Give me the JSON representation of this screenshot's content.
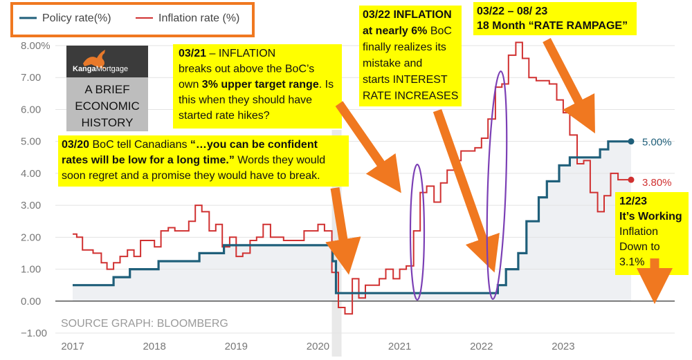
{
  "legend": {
    "items": [
      {
        "label": "Policy rate(%)",
        "color": "#1f5f7a"
      },
      {
        "label": "Inflation rate (%)",
        "color": "#d03030"
      }
    ],
    "border_color": "#f07820"
  },
  "logo": {
    "brand_kanga": "Kanga",
    "brand_mortgage": "Mortgage",
    "icon": "kangaroo-icon"
  },
  "history_box": {
    "lines": [
      "A BRIEF",
      "ECONOMIC",
      "HISTORY"
    ]
  },
  "source": "SOURCE GRAPH: BLOOMBERG",
  "annotations": {
    "mar20": {
      "lines": [
        [
          {
            "t": "03/20",
            "b": true
          },
          {
            "t": " BoC tell Canadians ",
            "b": false
          },
          {
            "t": "“…you can be confident",
            "b": true
          }
        ],
        [
          {
            "t": "rates will be low for a long time.”",
            "b": true
          },
          {
            "t": "  Words they would",
            "b": false
          }
        ],
        [
          {
            "t": "soon regret and a promise they would have to break.",
            "b": false
          }
        ]
      ]
    },
    "mar21": {
      "lines": [
        [
          {
            "t": "03/21",
            "b": true
          },
          {
            "t": " – INFLATION",
            "b": false
          }
        ],
        [
          {
            "t": "breaks out above the BoC’s",
            "b": false
          }
        ],
        [
          {
            "t": "own ",
            "b": false
          },
          {
            "t": "3% upper target range",
            "b": true
          },
          {
            "t": ". Is",
            "b": false
          }
        ],
        [
          {
            "t": "this when they should have",
            "b": false
          }
        ],
        [
          {
            "t": "started rate hikes?",
            "b": false
          }
        ]
      ]
    },
    "mar22": {
      "lines": [
        [
          {
            "t": "03/22 INFLATION",
            "b": true
          }
        ],
        [
          {
            "t": "at nearly 6%",
            "b": true
          },
          {
            "t": " BoC",
            "b": false
          }
        ],
        [
          {
            "t": "finally realizes its",
            "b": false
          }
        ],
        [
          {
            "t": "mistake and",
            "b": false
          }
        ],
        [
          {
            "t": "starts INTEREST",
            "b": false
          }
        ],
        [
          {
            "t": "RATE INCREASES",
            "b": false
          }
        ]
      ]
    },
    "rampage": {
      "lines": [
        [
          {
            "t": "03/22 – 08/ 23",
            "b": true
          }
        ],
        [
          {
            "t": "18 Month “RATE RAMPAGE”",
            "b": true
          }
        ]
      ]
    },
    "dec23": {
      "lines": [
        [
          {
            "t": "12/23",
            "b": true
          }
        ],
        [
          {
            "t": "It’s Working",
            "b": true
          }
        ],
        [
          {
            "t": "Inflation",
            "b": false
          }
        ],
        [
          {
            "t": "Down to",
            "b": false
          }
        ],
        [
          {
            "t": "3.1%",
            "b": false
          }
        ]
      ]
    }
  },
  "end_labels": {
    "policy": "5.00%",
    "inflation": "3.80%"
  },
  "colors": {
    "policy": "#1f5f7a",
    "inflation": "#d03030",
    "note_bg": "#ffff00",
    "arrow": "#f07820",
    "ellipse": "#7b3fb5",
    "area": "#eef0f3"
  },
  "chart_data": {
    "type": "line",
    "ylim": [
      -1,
      8
    ],
    "xlim": [
      2017,
      2023.95
    ],
    "y_ticks": [
      8,
      7,
      6,
      5,
      4,
      3,
      2,
      1,
      0,
      -1
    ],
    "y_tick_labels": [
      "8.00%",
      "7.00",
      "6.00",
      "5.00",
      "4.00",
      "3.00",
      "2.00",
      "1.00",
      "0.00",
      "−1.00"
    ],
    "x_ticks": [
      2017,
      2018,
      2019,
      2020,
      2021,
      2022,
      2023
    ],
    "x_tick_labels": [
      "2017",
      "2018",
      "2019",
      "2020",
      "2021",
      "2022",
      "2023"
    ],
    "series": [
      {
        "name": "Policy rate(%)",
        "step": true,
        "points": [
          [
            2017.0,
            0.5
          ],
          [
            2017.5,
            0.75
          ],
          [
            2017.7,
            1.0
          ],
          [
            2018.05,
            1.25
          ],
          [
            2018.55,
            1.5
          ],
          [
            2018.85,
            1.75
          ],
          [
            2020.18,
            1.25
          ],
          [
            2020.22,
            0.25
          ],
          [
            2022.2,
            0.5
          ],
          [
            2022.3,
            1.0
          ],
          [
            2022.45,
            1.5
          ],
          [
            2022.55,
            2.5
          ],
          [
            2022.7,
            3.25
          ],
          [
            2022.8,
            3.75
          ],
          [
            2022.95,
            4.25
          ],
          [
            2023.08,
            4.5
          ],
          [
            2023.45,
            4.75
          ],
          [
            2023.55,
            5.0
          ],
          [
            2023.83,
            5.0
          ]
        ]
      },
      {
        "name": "Inflation rate (%)",
        "step": true,
        "points": [
          [
            2017.0,
            2.1
          ],
          [
            2017.05,
            2.0
          ],
          [
            2017.12,
            1.6
          ],
          [
            2017.25,
            1.5
          ],
          [
            2017.35,
            1.2
          ],
          [
            2017.42,
            1.0
          ],
          [
            2017.5,
            1.2
          ],
          [
            2017.58,
            1.4
          ],
          [
            2017.67,
            1.6
          ],
          [
            2017.75,
            1.4
          ],
          [
            2017.83,
            1.9
          ],
          [
            2017.92,
            1.9
          ],
          [
            2018.0,
            1.7
          ],
          [
            2018.08,
            2.2
          ],
          [
            2018.17,
            2.3
          ],
          [
            2018.25,
            2.2
          ],
          [
            2018.33,
            2.2
          ],
          [
            2018.42,
            2.5
          ],
          [
            2018.5,
            3.0
          ],
          [
            2018.58,
            2.8
          ],
          [
            2018.67,
            2.2
          ],
          [
            2018.75,
            2.4
          ],
          [
            2018.83,
            1.7
          ],
          [
            2018.92,
            2.0
          ],
          [
            2019.0,
            1.4
          ],
          [
            2019.08,
            1.5
          ],
          [
            2019.17,
            1.9
          ],
          [
            2019.25,
            2.0
          ],
          [
            2019.33,
            2.4
          ],
          [
            2019.42,
            2.0
          ],
          [
            2019.5,
            2.0
          ],
          [
            2019.58,
            1.9
          ],
          [
            2019.67,
            1.9
          ],
          [
            2019.75,
            1.9
          ],
          [
            2019.83,
            2.2
          ],
          [
            2019.92,
            2.2
          ],
          [
            2020.0,
            2.4
          ],
          [
            2020.08,
            2.2
          ],
          [
            2020.17,
            0.9
          ],
          [
            2020.25,
            -0.2
          ],
          [
            2020.33,
            -0.4
          ],
          [
            2020.42,
            0.7
          ],
          [
            2020.5,
            0.1
          ],
          [
            2020.58,
            0.5
          ],
          [
            2020.67,
            0.5
          ],
          [
            2020.75,
            0.7
          ],
          [
            2020.83,
            1.0
          ],
          [
            2020.92,
            0.7
          ],
          [
            2021.0,
            1.0
          ],
          [
            2021.08,
            1.1
          ],
          [
            2021.17,
            2.2
          ],
          [
            2021.25,
            3.4
          ],
          [
            2021.33,
            3.6
          ],
          [
            2021.42,
            3.1
          ],
          [
            2021.5,
            3.7
          ],
          [
            2021.58,
            4.1
          ],
          [
            2021.67,
            4.4
          ],
          [
            2021.75,
            4.7
          ],
          [
            2021.83,
            4.7
          ],
          [
            2021.92,
            4.8
          ],
          [
            2022.0,
            5.1
          ],
          [
            2022.08,
            5.7
          ],
          [
            2022.17,
            6.7
          ],
          [
            2022.25,
            6.8
          ],
          [
            2022.33,
            7.7
          ],
          [
            2022.42,
            8.1
          ],
          [
            2022.5,
            7.6
          ],
          [
            2022.58,
            7.0
          ],
          [
            2022.67,
            6.9
          ],
          [
            2022.75,
            6.9
          ],
          [
            2022.83,
            6.8
          ],
          [
            2022.92,
            6.3
          ],
          [
            2023.0,
            5.9
          ],
          [
            2023.08,
            5.2
          ],
          [
            2023.17,
            4.3
          ],
          [
            2023.25,
            4.4
          ],
          [
            2023.33,
            3.4
          ],
          [
            2023.42,
            2.8
          ],
          [
            2023.5,
            3.3
          ],
          [
            2023.58,
            4.0
          ],
          [
            2023.67,
            3.8
          ],
          [
            2023.75,
            3.8
          ]
        ]
      }
    ]
  }
}
